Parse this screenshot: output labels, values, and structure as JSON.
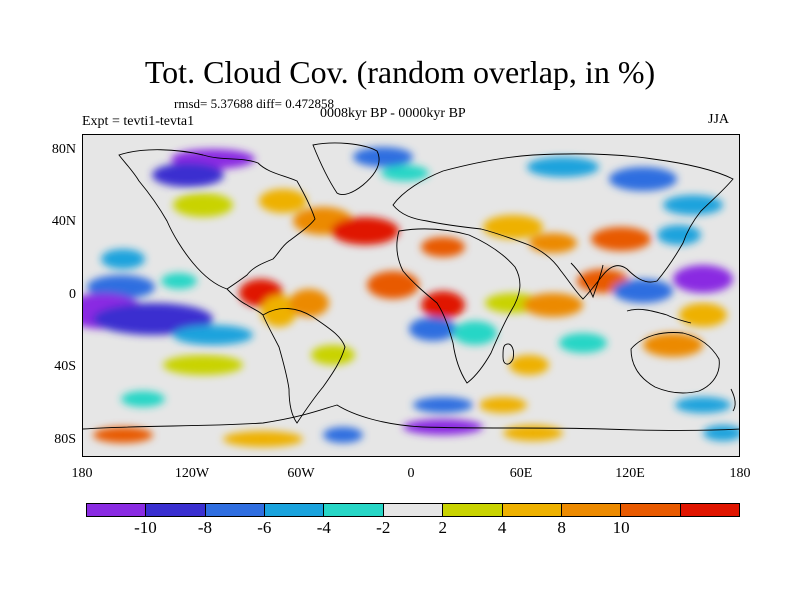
{
  "title": "Tot. Cloud Cov. (random overlap, in %)",
  "stats": "rmsd= 5.37688 diff= 0.472858",
  "experiment": "Expt = tevti1-tevta1",
  "period": "0008kyr BP - 0000kyr BP",
  "season": "JJA",
  "lat_labels": [
    "80N",
    "40N",
    "0",
    "40S",
    "80S"
  ],
  "lon_labels": [
    "180",
    "120W",
    "60W",
    "0",
    "60E",
    "120E",
    "180"
  ],
  "colorbar": {
    "colors": [
      "#8a2be2",
      "#3a2fd0",
      "#2f6ee0",
      "#1aa3dd",
      "#27d6c6",
      "#e6e6e6",
      "#c9d300",
      "#eeb100",
      "#ec8a00",
      "#e85a00",
      "#e01500"
    ],
    "labels": [
      "-10",
      "-8",
      "-6",
      "-4",
      "-2",
      "2",
      "4",
      "8",
      "10"
    ]
  },
  "colors": {
    "no_change": "#e6e6e6",
    "coastline": "#000000"
  }
}
